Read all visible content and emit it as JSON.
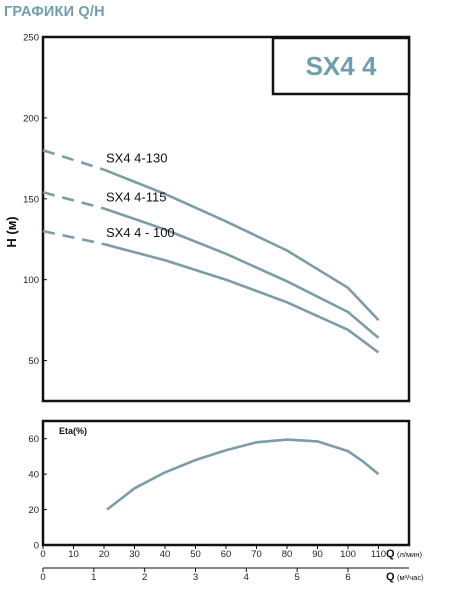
{
  "page": {
    "title": "ГРАФИКИ Q/H",
    "model": "SX4 4"
  },
  "colors": {
    "curve": "#7c9da7",
    "frame": "#111111",
    "title": "#6f9fae"
  },
  "chart_data": [
    {
      "type": "line",
      "ylabel": "H (м)",
      "xlim": [
        0,
        120
      ],
      "ylim": [
        25,
        250
      ],
      "yticks": [
        50,
        100,
        150,
        200,
        250
      ],
      "grid": false,
      "series": [
        {
          "name": "SX4 4-130",
          "x": [
            0,
            20,
            40,
            60,
            80,
            100,
            110
          ],
          "y": [
            180,
            168,
            153,
            136,
            118,
            95,
            75
          ],
          "dashed_until": 20
        },
        {
          "name": "SX4 4-115",
          "x": [
            0,
            20,
            40,
            60,
            80,
            100,
            110
          ],
          "y": [
            154,
            144,
            131,
            116,
            99,
            80,
            64
          ],
          "dashed_until": 20
        },
        {
          "name": "SX4 4 - 100",
          "x": [
            0,
            20,
            40,
            60,
            80,
            100,
            110
          ],
          "y": [
            130,
            122,
            112,
            100,
            86,
            69,
            55
          ],
          "dashed_until": 20
        }
      ]
    },
    {
      "type": "line",
      "ylabel": "Eta(%)",
      "xlim": [
        0,
        120
      ],
      "ylim": [
        0,
        70
      ],
      "yticks": [
        0,
        20,
        40,
        60
      ],
      "series": [
        {
          "x": [
            21,
            30,
            40,
            50,
            60,
            70,
            80,
            90,
            100,
            105,
            110
          ],
          "y": [
            20,
            32,
            41,
            48,
            53.5,
            58,
            59.5,
            58.5,
            53,
            47,
            40
          ]
        }
      ]
    },
    {
      "type": "axis",
      "label": "Q",
      "unit": "(л/мин)",
      "ticks": [
        "0",
        "10",
        "20",
        "30",
        "40",
        "50",
        "60",
        "70",
        "80",
        "90",
        "100",
        "110"
      ]
    },
    {
      "type": "axis",
      "label": "Q",
      "unit": "(м³/час)",
      "ticks": [
        "0",
        "1",
        "2",
        "3",
        "4",
        "5",
        "6"
      ]
    }
  ]
}
